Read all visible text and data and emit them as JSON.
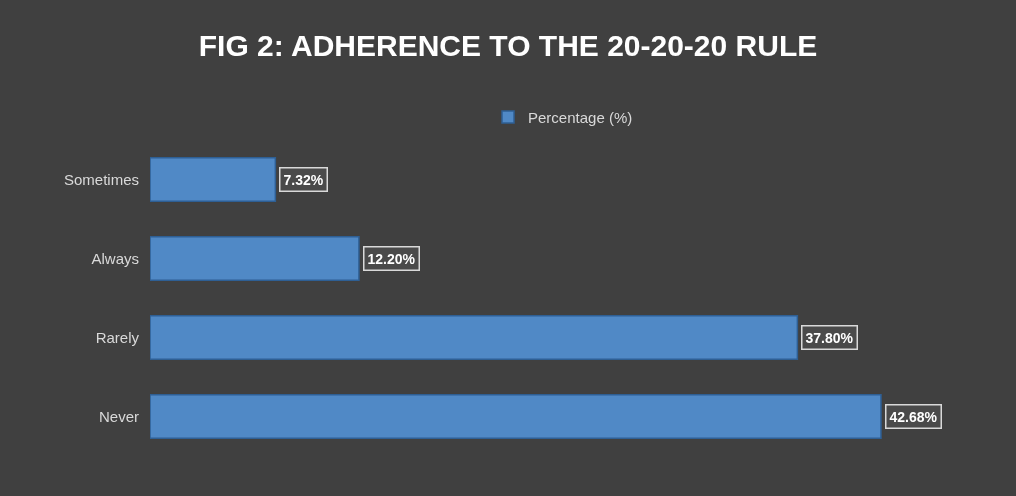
{
  "chart_data": {
    "type": "bar",
    "orientation": "horizontal",
    "title": "FIG 2: ADHERENCE TO THE 20-20-20 RULE",
    "categories": [
      "Sometimes",
      "Always",
      "Rarely",
      "Never"
    ],
    "series": [
      {
        "name": "Percentage (%)",
        "color": "#5089c6",
        "values": [
          7.32,
          12.2,
          37.8,
          42.68
        ],
        "value_labels": [
          "7.32%",
          "12.20%",
          "37.80%",
          "42.68%"
        ]
      }
    ],
    "legend": "top",
    "grid": false
  }
}
